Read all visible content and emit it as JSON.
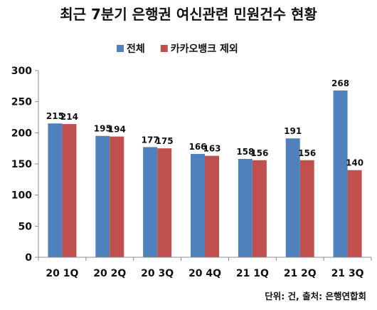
{
  "chart_data": {
    "type": "bar",
    "title": "최근 7분기 은행권 여신관련 민원건수 현황",
    "categories": [
      "20 1Q",
      "20 2Q",
      "20 3Q",
      "20 4Q",
      "21 1Q",
      "21 2Q",
      "21 3Q"
    ],
    "series": [
      {
        "name": "전체",
        "color": "#4F81BD",
        "values": [
          215,
          195,
          177,
          166,
          158,
          191,
          268
        ]
      },
      {
        "name": "카카오뱅크 제외",
        "color": "#C0504D",
        "values": [
          214,
          194,
          175,
          163,
          156,
          156,
          140
        ]
      }
    ],
    "ylim": [
      0,
      300
    ],
    "yticks": [
      0,
      50,
      100,
      150,
      200,
      250,
      300
    ],
    "legend_position": "top-center",
    "grid": false,
    "footnote": "단위: 건, 출처: 은행연합회"
  }
}
